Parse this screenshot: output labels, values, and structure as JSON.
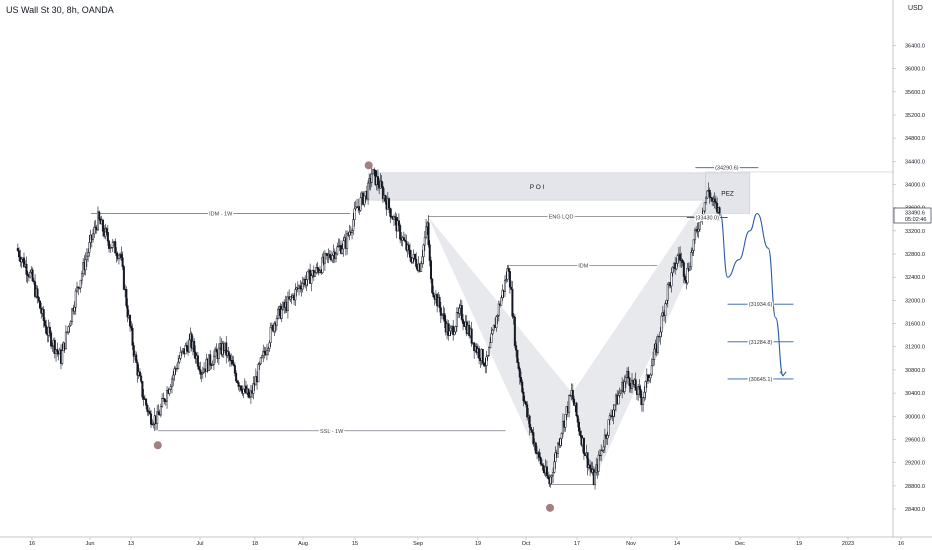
{
  "chart_data": {
    "type": "candlestick",
    "title": "US Wall St 30, 8h, OANDA",
    "currency": "USD",
    "x_ticks": [
      "16",
      "Jun",
      "13",
      "Jul",
      "18",
      "Aug",
      "15",
      "Sep",
      "19",
      "Oct",
      "17",
      "Nov",
      "14",
      "Dec",
      "19",
      "2023",
      "16"
    ],
    "y_ticks": [
      28400,
      28800,
      29200,
      29600,
      30000,
      30400,
      30800,
      31200,
      31600,
      32000,
      32400,
      32800,
      33200,
      33600,
      34000,
      34400,
      34800,
      35200,
      35600,
      36000,
      36400
    ],
    "ylim": [
      28100,
      36750
    ],
    "last_price": "33490.6",
    "countdown": "05:02:46",
    "price_path": [
      [
        "May 12",
        32900
      ],
      [
        "May 16",
        32400
      ],
      [
        "May 20",
        31500
      ],
      [
        "May 24",
        31000
      ],
      [
        "May 28",
        32100
      ],
      [
        "Jun 1",
        33000
      ],
      [
        "Jun 3",
        33400
      ],
      [
        "Jun 6",
        33000
      ],
      [
        "Jun 9",
        32800
      ],
      [
        "Jun 11",
        31800
      ],
      [
        "Jun 13",
        31000
      ],
      [
        "Jun 15",
        30400
      ],
      [
        "Jun 17",
        30000
      ],
      [
        "Jun 19",
        29950
      ],
      [
        "Jun 22",
        30500
      ],
      [
        "Jun 25",
        31000
      ],
      [
        "Jun 28",
        31300
      ],
      [
        "Jul 1",
        30800
      ],
      [
        "Jul 4",
        31000
      ],
      [
        "Jul 7",
        31200
      ],
      [
        "Jul 11",
        30600
      ],
      [
        "Jul 14",
        30300
      ],
      [
        "Jul 18",
        31100
      ],
      [
        "Jul 21",
        31700
      ],
      [
        "Jul 25",
        32000
      ],
      [
        "Jul 28",
        32300
      ],
      [
        "Aug 1",
        32500
      ],
      [
        "Aug 5",
        32800
      ],
      [
        "Aug 9",
        33000
      ],
      [
        "Aug 12",
        33600
      ],
      [
        "Aug 15",
        33900
      ],
      [
        "Aug 16",
        34200
      ],
      [
        "Aug 18",
        34000
      ],
      [
        "Aug 22",
        33400
      ],
      [
        "Aug 26",
        32800
      ],
      [
        "Aug 29",
        32600
      ],
      [
        "Aug 31",
        33300
      ],
      [
        "Sep 1",
        32300
      ],
      [
        "Sep 6",
        31400
      ],
      [
        "Sep 9",
        31800
      ],
      [
        "Sep 13",
        31200
      ],
      [
        "Sep 16",
        30900
      ],
      [
        "Sep 19",
        31800
      ],
      [
        "Sep 21",
        32300
      ],
      [
        "Sep 22",
        32600
      ],
      [
        "Sep 24",
        31100
      ],
      [
        "Sep 27",
        30000
      ],
      [
        "Sep 30",
        29300
      ],
      [
        "Oct 3",
        28850
      ],
      [
        "Oct 6",
        29700
      ],
      [
        "Oct 9",
        30400
      ],
      [
        "Oct 11",
        29800
      ],
      [
        "Oct 13",
        29300
      ],
      [
        "Oct 15",
        28900
      ],
      [
        "Oct 17",
        29400
      ],
      [
        "Oct 20",
        30100
      ],
      [
        "Oct 24",
        30700
      ],
      [
        "Oct 28",
        30300
      ],
      [
        "Nov 1",
        31200
      ],
      [
        "Nov 4",
        32200
      ],
      [
        "Nov 7",
        32800
      ],
      [
        "Nov 9",
        32400
      ],
      [
        "Nov 11",
        33000
      ],
      [
        "Nov 13",
        33500
      ],
      [
        "Nov 15",
        33900
      ],
      [
        "Nov 16",
        33700
      ],
      [
        "Nov 18",
        33500
      ]
    ],
    "projection": [
      [
        "Nov 18",
        33490
      ],
      [
        "Nov 20",
        32400
      ],
      [
        "Nov 23",
        32700
      ],
      [
        "Nov 26",
        33200
      ],
      [
        "Nov 28",
        33500
      ],
      [
        "Dec 1",
        32900
      ],
      [
        "Dec 3",
        31700
      ],
      [
        "Dec 5",
        30700
      ]
    ],
    "levels": [
      {
        "label": "IDM - 1W",
        "value": 33500,
        "from": "Jun 1",
        "to": "Aug 10"
      },
      {
        "label": "SSL - 1W",
        "value": 29750,
        "from": "Jun 19",
        "to": "Sep 21"
      },
      {
        "label": "ENG LQD",
        "value": 33450,
        "from": "Aug 31",
        "to": "Nov 11"
      },
      {
        "label": "IDM",
        "value": 32600,
        "from": "Sep 22",
        "to": "Nov 1"
      },
      {
        "label": "",
        "value": 28820,
        "from": "Oct 3",
        "to": "Oct 15"
      }
    ],
    "targets": [
      {
        "label": "(34290.6)",
        "value": 34290.6
      },
      {
        "label": "(33430.0)",
        "value": 33430.0
      },
      {
        "label": "(31934.6)",
        "value": 31934.6
      },
      {
        "label": "(31284.8)",
        "value": 31284.8
      },
      {
        "label": "(30645.1)",
        "value": 30645.1
      }
    ],
    "zones": [
      {
        "label": "P O I",
        "from": "Aug 15",
        "to": "Nov 14",
        "low": 33730,
        "high": 34200
      },
      {
        "label": "PEZ",
        "from": "Nov 14",
        "to": "Nov 26",
        "low": 33500,
        "high": 34200
      }
    ],
    "markers": [
      {
        "date": "Jun 19",
        "value": 29500
      },
      {
        "date": "Aug 15",
        "value": 34330
      },
      {
        "date": "Oct 3",
        "value": 28420
      }
    ],
    "colors": {
      "candles": "#131722",
      "level_line": "#787b86",
      "projection": "#2a5caa",
      "marker": "#a37f80",
      "zone": "#e3e5ea",
      "triangle": "#e6e7eb"
    }
  }
}
